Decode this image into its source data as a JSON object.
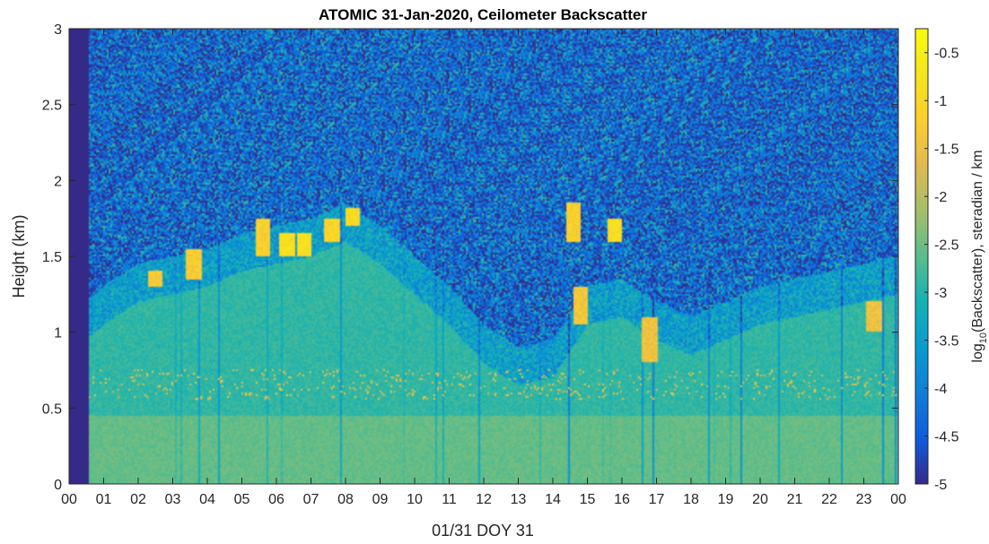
{
  "chart_data": {
    "type": "heatmap",
    "title": "ATOMIC 31-Jan-2020, Ceilometer Backscatter",
    "xlabel": "01/31 DOY 31",
    "ylabel": "Height (km)",
    "colorbar_label_prefix": "log",
    "colorbar_label_subscript": "10",
    "colorbar_label_suffix": "(Backscatter), steradian / km",
    "x_ticks": [
      "00",
      "01",
      "02",
      "03",
      "04",
      "05",
      "06",
      "07",
      "08",
      "09",
      "10",
      "11",
      "12",
      "13",
      "14",
      "15",
      "16",
      "17",
      "18",
      "19",
      "20",
      "21",
      "22",
      "23",
      "00"
    ],
    "xlim": [
      0,
      24
    ],
    "ylim": [
      0,
      3
    ],
    "y_ticks": [
      "0",
      "0.5",
      "1",
      "1.5",
      "2",
      "2.5",
      "3"
    ],
    "clim": [
      -5,
      -0.25
    ],
    "colorbar_ticks": [
      "-0.5",
      "-1",
      "-1.5",
      "-2",
      "-2.5",
      "-3",
      "-3.5",
      "-4",
      "-4.5",
      "-5"
    ],
    "colormap": "parula",
    "no_data_until_hour": 0.55,
    "cloud_top_km": [
      {
        "hour": 0.5,
        "height": 1.2
      },
      {
        "hour": 1,
        "height": 1.3
      },
      {
        "hour": 2,
        "height": 1.45
      },
      {
        "hour": 3,
        "height": 1.5
      },
      {
        "hour": 4,
        "height": 1.55
      },
      {
        "hour": 5,
        "height": 1.65
      },
      {
        "hour": 6,
        "height": 1.7
      },
      {
        "hour": 7,
        "height": 1.75
      },
      {
        "hour": 8,
        "height": 1.85
      },
      {
        "hour": 9,
        "height": 1.7
      },
      {
        "hour": 10,
        "height": 1.5
      },
      {
        "hour": 11,
        "height": 1.3
      },
      {
        "hour": 12,
        "height": 1.05
      },
      {
        "hour": 13,
        "height": 0.9
      },
      {
        "hour": 14,
        "height": 0.95
      },
      {
        "hour": 15,
        "height": 1.3
      },
      {
        "hour": 16,
        "height": 1.35
      },
      {
        "hour": 17,
        "height": 1.2
      },
      {
        "hour": 18,
        "height": 1.1
      },
      {
        "hour": 19,
        "height": 1.2
      },
      {
        "hour": 20,
        "height": 1.3
      },
      {
        "hour": 21,
        "height": 1.35
      },
      {
        "hour": 22,
        "height": 1.4
      },
      {
        "hour": 23,
        "height": 1.45
      },
      {
        "hour": 24,
        "height": 1.5
      }
    ],
    "strong_backscatter_features": [
      {
        "hour": 6.3,
        "height_range": [
          1.5,
          1.65
        ],
        "value": -0.6
      },
      {
        "hour": 6.8,
        "height_range": [
          1.5,
          1.65
        ],
        "value": -0.6
      },
      {
        "hour": 7.6,
        "height_range": [
          1.6,
          1.75
        ],
        "value": -0.8
      },
      {
        "hour": 8.2,
        "height_range": [
          1.7,
          1.82
        ],
        "value": -0.7
      },
      {
        "hour": 2.5,
        "height_range": [
          1.3,
          1.4
        ],
        "value": -1.0
      },
      {
        "hour": 3.6,
        "height_range": [
          1.35,
          1.55
        ],
        "value": -1.0
      },
      {
        "hour": 5.6,
        "height_range": [
          1.5,
          1.75
        ],
        "value": -0.9
      },
      {
        "hour": 14.6,
        "height_range": [
          1.6,
          1.85
        ],
        "value": -0.9
      },
      {
        "hour": 15.8,
        "height_range": [
          1.6,
          1.75
        ],
        "value": -0.6
      },
      {
        "hour": 14.8,
        "height_range": [
          1.05,
          1.3
        ],
        "value": -1.1
      },
      {
        "hour": 16.8,
        "height_range": [
          0.8,
          1.1
        ],
        "value": -1.2
      },
      {
        "hour": 23.3,
        "height_range": [
          1.0,
          1.2
        ],
        "value": -1.2
      }
    ],
    "low_cloud_band_km": [
      0.55,
      0.75
    ],
    "grid": false
  }
}
